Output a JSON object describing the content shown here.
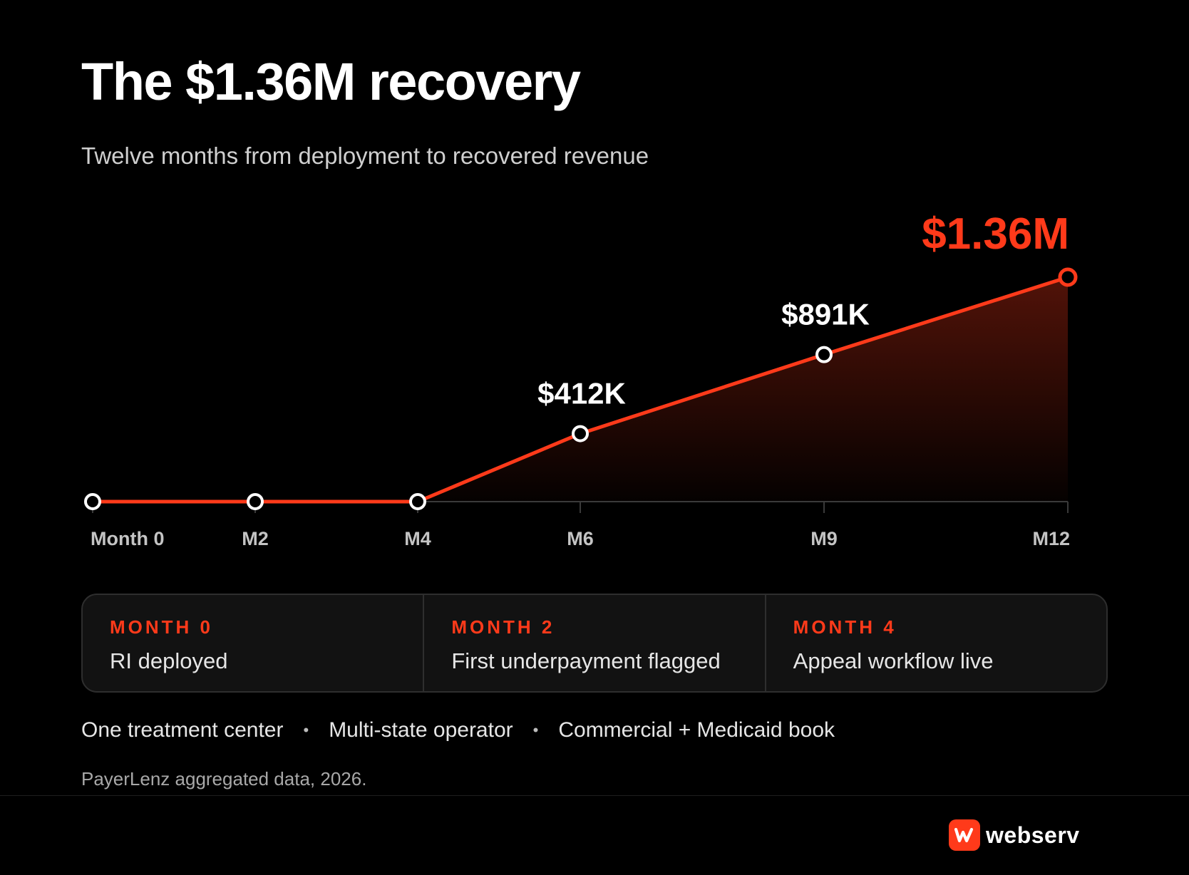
{
  "header": {
    "title": "The $1.36M recovery",
    "subtitle": "Twelve months from deployment to recovered revenue"
  },
  "colors": {
    "accent": "#ff3a1a",
    "background": "#000000",
    "marker_fill": "#000000",
    "marker_stroke": "#ffffff",
    "axis": "#3a3a3a",
    "tick_label": "#c4c4c4"
  },
  "chart_data": {
    "type": "area",
    "xlabel": "",
    "ylabel": "",
    "x": [
      0,
      2,
      4,
      6,
      9,
      12
    ],
    "tick_labels": [
      "Month 0",
      "M2",
      "M4",
      "M6",
      "M9",
      "M12"
    ],
    "series": [
      {
        "values": [
          0,
          0,
          0,
          412000,
          891000,
          1360000
        ]
      }
    ],
    "data_labels": [
      {
        "x": 6,
        "text": "$412K"
      },
      {
        "x": 9,
        "text": "$891K"
      },
      {
        "x": 12,
        "text": "$1.36M",
        "highlight": true
      }
    ],
    "xlim": [
      0,
      12
    ],
    "ylim": [
      0,
      1360000
    ],
    "grid": false,
    "legend": "none"
  },
  "milestones": [
    {
      "label": "MONTH 0",
      "text": "RI deployed"
    },
    {
      "label": "MONTH 2",
      "text": "First underpayment flagged"
    },
    {
      "label": "MONTH 4",
      "text": "Appeal workflow live"
    }
  ],
  "facts": [
    "One treatment center",
    "Multi-state operator",
    "Commercial + Medicaid book"
  ],
  "fact_separator": "•",
  "source": "PayerLenz aggregated data, 2026.",
  "brand": {
    "name": "webserv",
    "icon": "webserv-logo-icon"
  }
}
